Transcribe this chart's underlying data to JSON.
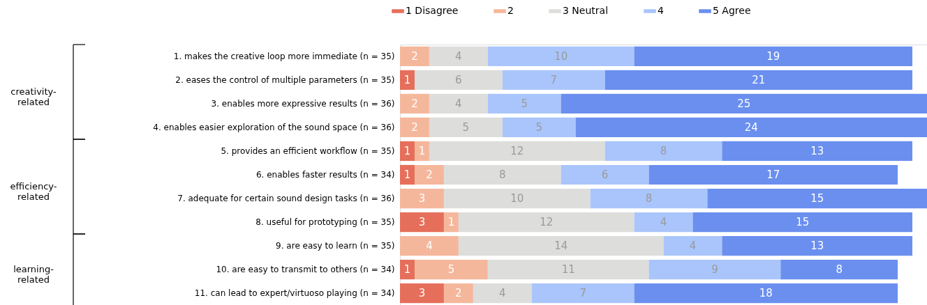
{
  "chart_data": {
    "type": "bar",
    "orientation": "horizontal",
    "stacked": true,
    "data_labels": true,
    "legend": "top",
    "categories": [
      "1. makes the creative loop more immediate (n = 35)",
      "2. eases the control of multiple parameters (n = 35)",
      "3. enables more expressive results (n = 36)",
      "4. enables easier exploration of the sound space (n = 36)",
      "5. provides an efficient workflow (n = 35)",
      "6. enables faster results (n = 34)",
      "7. adequate for certain sound design tasks (n = 36)",
      "8. useful for prototyping (n = 35)",
      "9. are easy to learn (n = 35)",
      "10. are easy to transmit to others (n = 34)",
      "11. can lead to expert/virtuoso playing (n = 34)"
    ],
    "series": [
      {
        "name": "1 Disagree",
        "color": "#e56f5a",
        "values": [
          null,
          1,
          null,
          null,
          1,
          1,
          null,
          3,
          null,
          1,
          3
        ]
      },
      {
        "name": "2",
        "color": "#f5b79b",
        "values": [
          2,
          null,
          2,
          2,
          1,
          2,
          3,
          1,
          4,
          5,
          2
        ]
      },
      {
        "name": "3 Neutral",
        "color": "#dddddb",
        "values": [
          4,
          6,
          4,
          5,
          12,
          8,
          10,
          12,
          14,
          11,
          4
        ]
      },
      {
        "name": "4",
        "color": "#a9c5fb",
        "values": [
          10,
          7,
          5,
          5,
          8,
          6,
          8,
          4,
          4,
          9,
          7
        ]
      },
      {
        "name": "5 Agree",
        "color": "#6a8fef",
        "values": [
          19,
          21,
          25,
          24,
          13,
          17,
          15,
          15,
          13,
          8,
          18
        ]
      }
    ],
    "annotations": [
      "creativity-related",
      "efficiency-related",
      "learning-related"
    ]
  }
}
